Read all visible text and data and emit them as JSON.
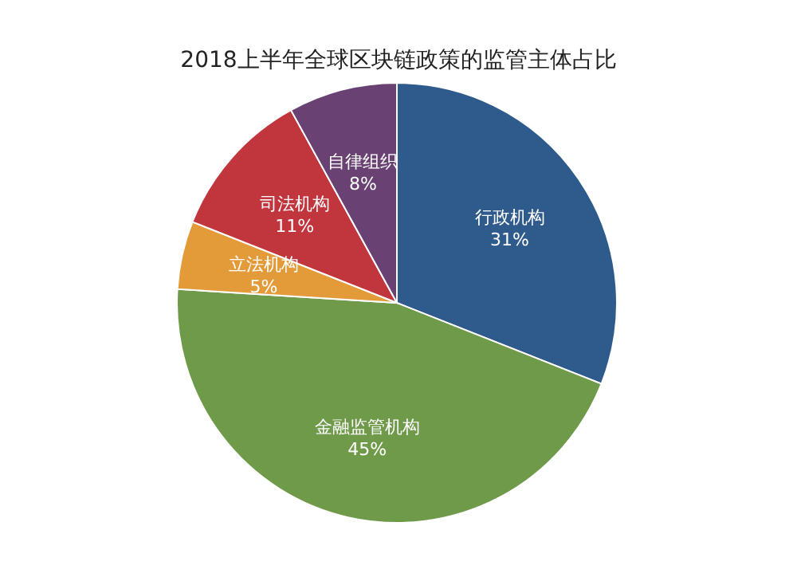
{
  "chart_data": {
    "type": "pie",
    "title": "2018上半年全球区块链政策的监管主体占比",
    "categories": [
      "行政机构",
      "金融监管机构",
      "立法机构",
      "司法机构",
      "自律组织"
    ],
    "values": [
      31,
      45,
      5,
      11,
      8
    ],
    "colors": [
      "#2e5a8c",
      "#6f9a4a",
      "#e39b3a",
      "#c1353c",
      "#6a4173"
    ],
    "value_labels": [
      "31%",
      "45%",
      "5%",
      "11%",
      "8%"
    ]
  }
}
